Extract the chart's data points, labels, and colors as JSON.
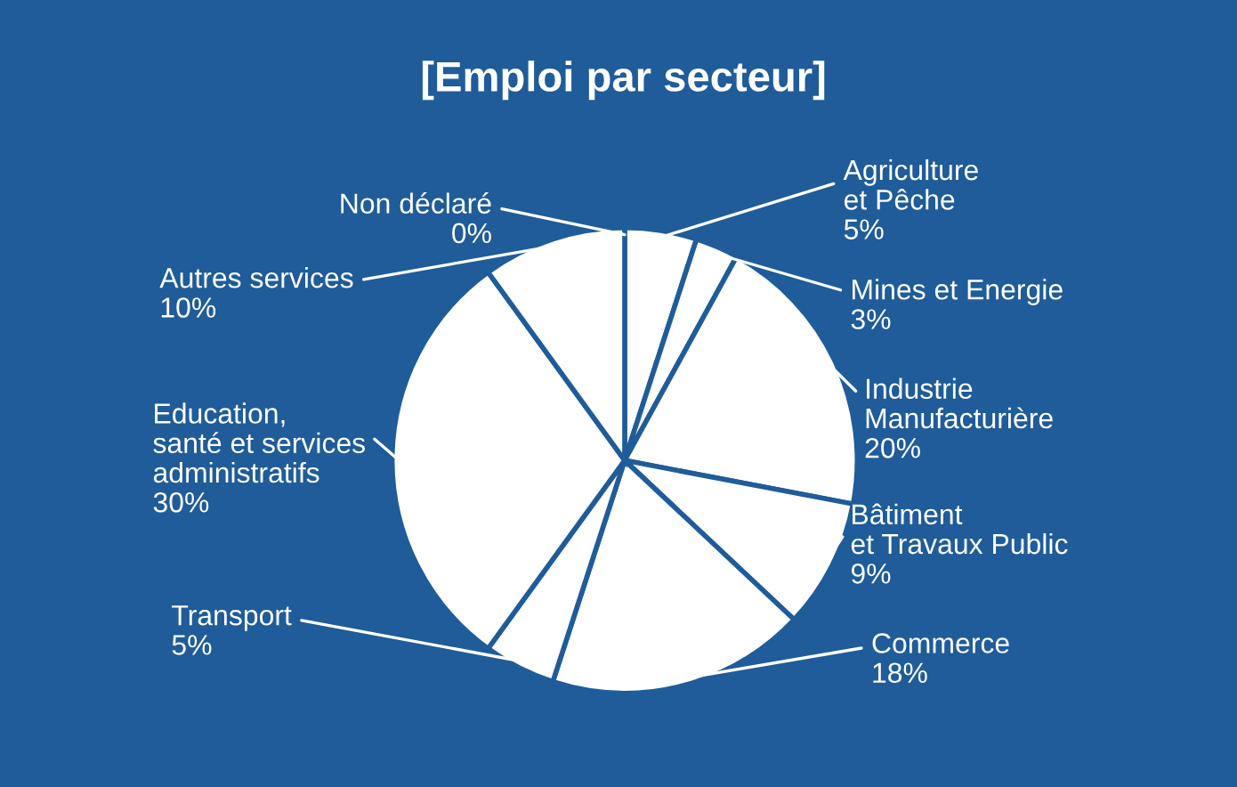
{
  "chart_data": {
    "type": "pie",
    "title": "[Emploi par secteur]",
    "categories": [
      "Non déclaré",
      "Agriculture\net Pêche",
      "Mines et Energie",
      "Industrie\nManufacturière",
      "Bâtiment\net Travaux Public",
      "Commerce",
      "Transport",
      "Education,\nsanté et services\nadministratifs",
      "Autres services"
    ],
    "values": [
      0,
      5,
      3,
      20,
      9,
      18,
      5,
      30,
      10
    ],
    "value_labels": [
      "0%",
      "5%",
      "3%",
      "20%",
      "9%",
      "18%",
      "5%",
      "30%",
      "10%"
    ],
    "colors": [
      "#ffffff",
      "#ffffff",
      "#ffffff",
      "#ffffff",
      "#ffffff",
      "#ffffff",
      "#ffffff",
      "#ffffff",
      "#ffffff"
    ]
  }
}
